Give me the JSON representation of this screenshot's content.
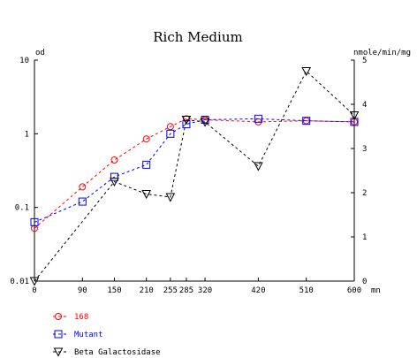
{
  "chart_data": {
    "type": "line",
    "title": "Rich Medium",
    "x_unit": "mn",
    "y_left_label": "od",
    "y_right_label": "nmole/min/mg",
    "y_left_scale": "log",
    "y_left_range": [
      0.01,
      10
    ],
    "y_left_ticks": [
      "0.01",
      "0.1",
      "1",
      "10"
    ],
    "y_right_range": [
      0,
      5
    ],
    "y_right_ticks": [
      "0",
      "1",
      "2",
      "3",
      "4",
      "5"
    ],
    "x_range": [
      0,
      600
    ],
    "x_ticks": [
      0,
      90,
      150,
      210,
      255,
      285,
      320,
      420,
      510,
      600
    ],
    "grid": false,
    "legend_position": "bottom-left",
    "series": [
      {
        "name": "168",
        "axis": "left",
        "marker": "circle",
        "color": "#ff0000",
        "x": [
          0,
          90,
          150,
          210,
          255,
          285,
          320,
          420,
          510,
          600
        ],
        "y": [
          0.052,
          0.19,
          0.44,
          0.85,
          1.25,
          1.6,
          1.55,
          1.45,
          1.5,
          1.45
        ]
      },
      {
        "name": "Mutant",
        "axis": "left",
        "marker": "square",
        "color": "#0000ff",
        "x": [
          0,
          90,
          150,
          210,
          255,
          285,
          320,
          420,
          510,
          600
        ],
        "y": [
          0.063,
          0.12,
          0.26,
          0.38,
          1.0,
          1.35,
          1.55,
          1.6,
          1.5,
          1.45
        ]
      },
      {
        "name": "Beta Galactosidase",
        "axis": "right",
        "marker": "triangle-down",
        "color": "#000000",
        "x": [
          0,
          150,
          210,
          255,
          285,
          320,
          420,
          510,
          600
        ],
        "y": [
          0.0,
          2.25,
          1.97,
          1.9,
          3.65,
          3.6,
          2.6,
          4.75,
          3.75
        ]
      }
    ]
  }
}
